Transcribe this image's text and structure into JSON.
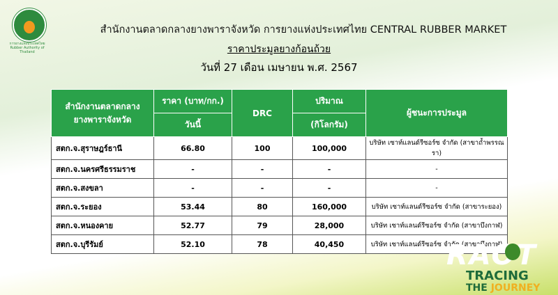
{
  "header": {
    "logo_text": "การยางแห่งประเทศไทย Rubber Authority of Thailand",
    "title": "สำนักงานตลาดกลางยางพาราจังหวัด การยางแห่งประเทศไทย CENTRAL RUBBER MARKET",
    "subtitle": "ราคาประมูลยางก้อนถ้วย",
    "date": "วันที่  27 เดือน เมษายน พ.ศ. 2567"
  },
  "table": {
    "headers": {
      "office": "สำนักงานตลาดกลาง ยางพาราจังหวัด",
      "price": "ราคา (บาท/กก.)",
      "today": "วันนี้",
      "drc": "DRC",
      "qty": "ปริมาณ",
      "qty_unit": "(กิโลกรัม)",
      "winner": "ผู้ชนะการประมูล"
    },
    "rows": [
      {
        "office": "สตก.จ.สุราษฎร์ธานี",
        "price": "66.80",
        "drc": "100",
        "qty": "100,000",
        "winner": "บริษัท เซาท์แลนด์รีซอร์ซ จำกัด (สาขาถ้ำพรรณรา)"
      },
      {
        "office": "สตก.จ.นครศรีธรรมราช",
        "price": "-",
        "drc": "-",
        "qty": "-",
        "winner": "-"
      },
      {
        "office": "สตก.จ.สงขลา",
        "price": "-",
        "drc": "-",
        "qty": "-",
        "winner": "-"
      },
      {
        "office": "สตก.จ.ระยอง",
        "price": "53.44",
        "drc": "80",
        "qty": "160,000",
        "winner": "บริษัท เซาท์แลนด์รีซอร์ซ จำกัด (สาขาระยอง)"
      },
      {
        "office": "สตก.จ.หนองคาย",
        "price": "52.77",
        "drc": "79",
        "qty": "28,000",
        "winner": "บริษัท เซาท์แลนด์รีซอร์ซ จำกัด (สาขาบึงกาฬ)"
      },
      {
        "office": "สตก.จ.บุรีรัมย์",
        "price": "52.10",
        "drc": "78",
        "qty": "40,450",
        "winner": "บริษัท เซาท์แลนด์รีซอร์ซ จำกัด (สาขาบึงกาฬ)"
      }
    ]
  },
  "brand": {
    "raot": "RAOT",
    "tracing": "TRACING",
    "the": "THE ",
    "journey": "JOURNEY"
  },
  "colors": {
    "header_green": "#2aa24a",
    "brand_green": "#1e6b3a"
  }
}
